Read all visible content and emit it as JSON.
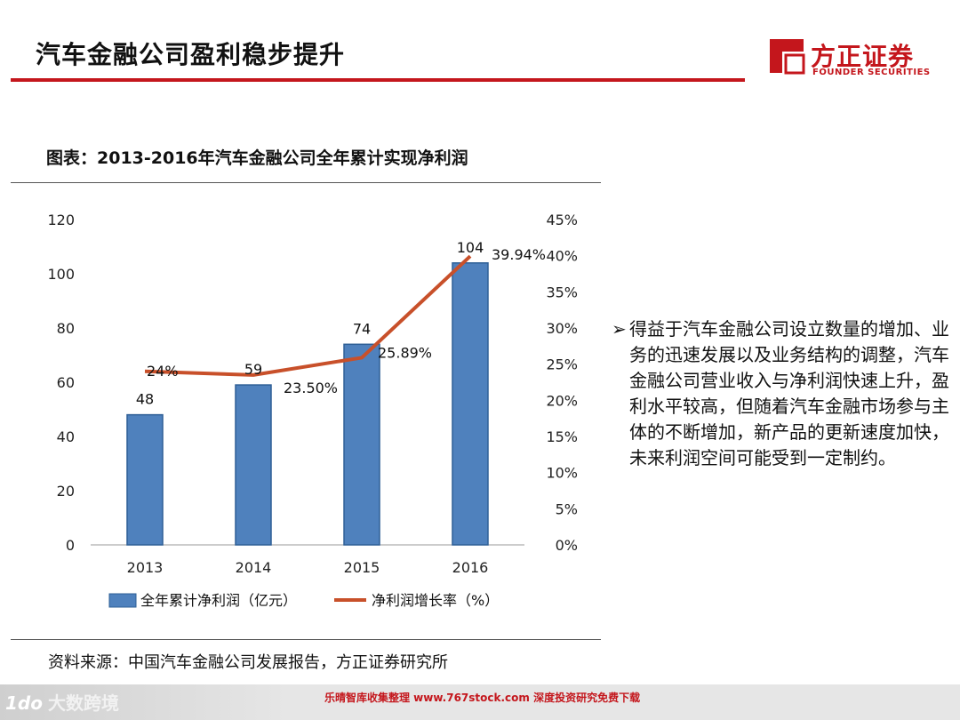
{
  "header": {
    "title": "汽车金融公司盈利稳步提升",
    "logo": {
      "name_cn": "方正证券",
      "name_en": "FOUNDER SECURITIES",
      "brand_color": "#c4161c"
    }
  },
  "chart": {
    "caption": "图表：2013-2016年汽车金融公司全年累计实现净利润",
    "source": "资料来源：中国汽车金融公司发展报告，方正证券研究所"
  },
  "chart_data": {
    "type": "bar",
    "categories": [
      "2013",
      "2014",
      "2015",
      "2016"
    ],
    "series": [
      {
        "name": "全年累计净利润（亿元）",
        "type": "bar",
        "axis": "left",
        "values": [
          48,
          59,
          74,
          104
        ],
        "labels": [
          "48",
          "59",
          "74",
          "104"
        ],
        "color": "#4f81bd"
      },
      {
        "name": "净利润增长率（%）",
        "type": "line",
        "axis": "right",
        "values": [
          24,
          23.5,
          25.89,
          39.94
        ],
        "labels": [
          "24%",
          "23.50%",
          "25.89%",
          "39.94%"
        ],
        "color": "#c8502a"
      }
    ],
    "y_left": {
      "min": 0,
      "max": 120,
      "ticks": [
        "0",
        "20",
        "40",
        "60",
        "80",
        "100",
        "120"
      ]
    },
    "y_right": {
      "min": 0,
      "max": 45,
      "ticks": [
        "0%",
        "5%",
        "10%",
        "15%",
        "20%",
        "25%",
        "30%",
        "35%",
        "40%",
        "45%"
      ]
    },
    "grid": false,
    "legend_position": "bottom"
  },
  "summary": {
    "bullet_symbol": "➢",
    "text": "得益于汽车金融公司设立数量的增加、业务的迅速发展以及业务结构的调整，汽车金融公司营业收入与净利润快速上升，盈利水平较高，但随着汽车金融市场参与主体的不断增加，新产品的更新速度加快，未来利润空间可能受到一定制约。"
  },
  "footer": {
    "watermark_logo": "1do",
    "watermark_text": "大数跨境",
    "banner_text": "乐晴智库收集整理 www.767stock.com 深度投资研究免费下载"
  }
}
